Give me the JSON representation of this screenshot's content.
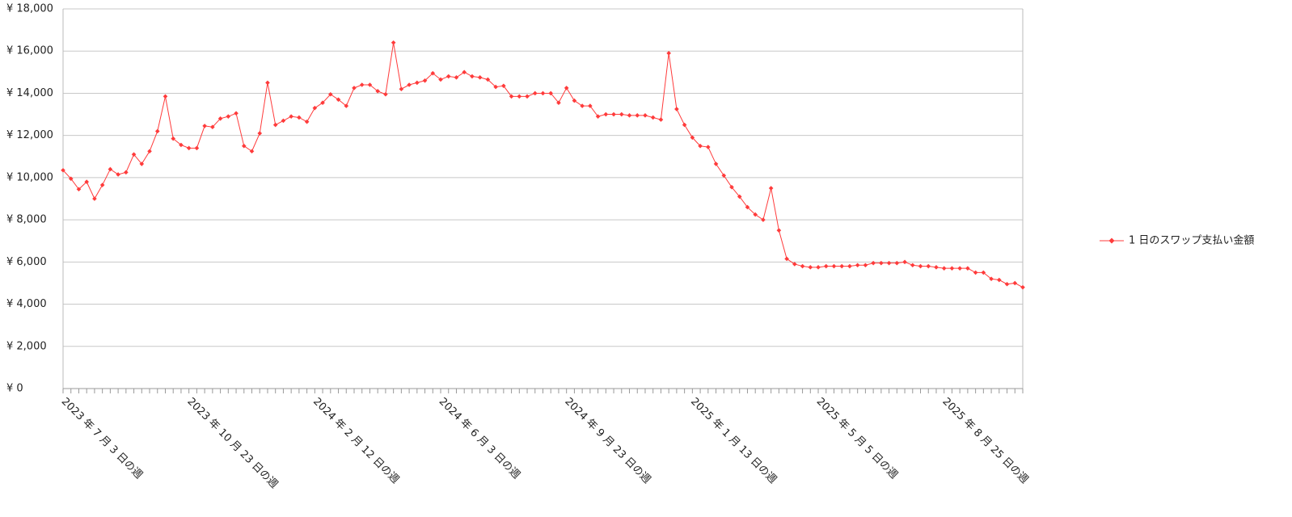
{
  "chart_data": {
    "type": "line",
    "categories": [
      "2023 年 7 月 3 日の週",
      null,
      null,
      null,
      null,
      null,
      null,
      null,
      null,
      null,
      null,
      null,
      null,
      null,
      null,
      null,
      "2023 年 10 月 23 日の週",
      null,
      null,
      null,
      null,
      null,
      null,
      null,
      null,
      null,
      null,
      null,
      null,
      null,
      null,
      null,
      "2024 年 2 月 12 日の週",
      null,
      null,
      null,
      null,
      null,
      null,
      null,
      null,
      null,
      null,
      null,
      null,
      null,
      null,
      null,
      "2024 年 6 月 3 日の週",
      null,
      null,
      null,
      null,
      null,
      null,
      null,
      null,
      null,
      null,
      null,
      null,
      null,
      null,
      null,
      "2024 年 9 月 23 日の週",
      null,
      null,
      null,
      null,
      null,
      null,
      null,
      null,
      null,
      null,
      null,
      null,
      null,
      null,
      null,
      "2025 年 1 月 13 日の週",
      null,
      null,
      null,
      null,
      null,
      null,
      null,
      null,
      null,
      null,
      null,
      null,
      null,
      null,
      null,
      "2025 年 5 月 5 日の週",
      null,
      null,
      null,
      null,
      null,
      null,
      null,
      null,
      null,
      null,
      null,
      null,
      null,
      null,
      null,
      "2025 年 8 月 25 日の週",
      null,
      null,
      null,
      null,
      null,
      null,
      null,
      null,
      null,
      null
    ],
    "series": [
      {
        "name": "1 日のスワップ支払い金額",
        "color": "#ff3b3b",
        "values": [
          10350,
          9950,
          9450,
          9800,
          9000,
          9650,
          10400,
          10150,
          10250,
          11100,
          10650,
          11250,
          12200,
          13850,
          11850,
          11550,
          11400,
          11400,
          12450,
          12400,
          12800,
          12900,
          13050,
          11500,
          11250,
          12100,
          14500,
          12500,
          12700,
          12900,
          12850,
          12650,
          13300,
          13550,
          13950,
          13700,
          13400,
          14250,
          14400,
          14400,
          14100,
          13950,
          16400,
          14200,
          14400,
          14500,
          14600,
          14950,
          14650,
          14800,
          14750,
          15000,
          14800,
          14750,
          14650,
          14300,
          14350,
          13850,
          13850,
          13850,
          14000,
          14000,
          14000,
          13550,
          14250,
          13650,
          13400,
          13400,
          12900,
          13000,
          13000,
          13000,
          12950,
          12950,
          12950,
          12850,
          12750,
          15900,
          13250,
          12500,
          11900,
          11500,
          11450,
          10650,
          10100,
          9550,
          9100,
          8600,
          8250,
          8000,
          9500,
          7500,
          6150,
          5900,
          5800,
          5750,
          5750,
          5800,
          5800,
          5800,
          5800,
          5850,
          5850,
          5950,
          5950,
          5950,
          5950,
          6000,
          5850,
          5800,
          5800,
          5750,
          5700,
          5700,
          5700,
          5700,
          5500,
          5500,
          5200,
          5150,
          4950,
          5000,
          4800
        ]
      }
    ],
    "ylim": [
      0,
      18000
    ],
    "yticks": [
      {
        "value": 0,
        "label": "¥ 0"
      },
      {
        "value": 2000,
        "label": "¥ 2,000"
      },
      {
        "value": 4000,
        "label": "¥ 4,000"
      },
      {
        "value": 6000,
        "label": "¥ 6,000"
      },
      {
        "value": 8000,
        "label": "¥ 8,000"
      },
      {
        "value": 10000,
        "label": "¥ 10,000"
      },
      {
        "value": 12000,
        "label": "¥ 12,000"
      },
      {
        "value": 14000,
        "label": "¥ 14,000"
      },
      {
        "value": 16000,
        "label": "¥ 16,000"
      },
      {
        "value": 18000,
        "label": "¥ 18,000"
      }
    ],
    "grid": true,
    "legend": "right"
  }
}
